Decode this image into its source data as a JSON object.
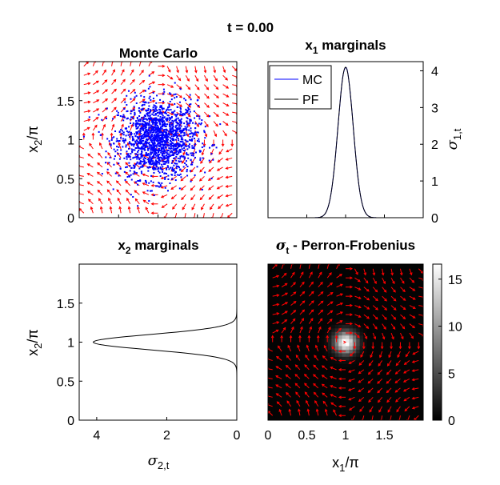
{
  "figure": {
    "title": "t = 0.00"
  },
  "chart_data": [
    {
      "id": "monte-carlo",
      "type": "scatter",
      "title": "Monte Carlo",
      "xlabel": "",
      "ylabel_main": "x",
      "ylabel_sub": "2",
      "ylabel_tail": "/π",
      "xlim": [
        0,
        2
      ],
      "ylim": [
        0,
        2
      ],
      "yticks": [
        0,
        0.5,
        1,
        1.5
      ],
      "yticklabels": [
        "0",
        "0.5",
        "1",
        "1.5"
      ],
      "particles": {
        "count": 1600,
        "mean": [
          1.0,
          1.0
        ],
        "std": [
          0.25,
          0.25
        ],
        "color": "#0000ff"
      },
      "vector_field": {
        "grid": 17,
        "color": "#ff0000",
        "center": [
          1.0,
          1.0
        ],
        "rotation": "counterclockwise"
      }
    },
    {
      "id": "x1-marginals",
      "type": "line",
      "title_main": "x",
      "title_sub": "1",
      "title_tail": " marginals",
      "ylabel_main": "σ",
      "ylabel_sub": "1,t",
      "xlim": [
        0,
        2
      ],
      "ylim": [
        0,
        4.25
      ],
      "yticks": [
        0,
        1,
        2,
        3,
        4
      ],
      "yticklabels": [
        "0",
        "1",
        "2",
        "3",
        "4"
      ],
      "series": [
        {
          "name": "MC",
          "color": "#0000ff",
          "mean": 1.0,
          "std": 0.098,
          "peak": 4.1
        },
        {
          "name": "PF",
          "color": "#000000",
          "mean": 1.0,
          "std": 0.098,
          "peak": 4.1
        }
      ],
      "legend_position": "top-left"
    },
    {
      "id": "x2-marginals",
      "type": "line",
      "title_main": "x",
      "title_sub": "2",
      "title_tail": " marginals",
      "xlabel_main": "σ",
      "xlabel_sub": "2,t",
      "ylabel_main": "x",
      "ylabel_sub": "2",
      "ylabel_tail": "/π",
      "xlim": [
        4.5,
        0
      ],
      "ylim": [
        0,
        2
      ],
      "xticks": [
        4,
        2,
        0
      ],
      "xticklabels": [
        "4",
        "2",
        "0"
      ],
      "yticks": [
        0,
        0.5,
        1,
        1.5
      ],
      "yticklabels": [
        "0",
        "0.5",
        "1",
        "1.5"
      ],
      "series": [
        {
          "name": "PF",
          "color": "#000000",
          "mean": 1.0,
          "std": 0.098,
          "peak": 4.1
        }
      ]
    },
    {
      "id": "perron-frobenius",
      "type": "heatmap",
      "title_main": "σ",
      "title_sub": "t",
      "title_tail": " - Perron-Frobenius",
      "xlabel_main": "x",
      "xlabel_sub": "1",
      "xlabel_tail": "/π",
      "xlim": [
        0,
        2
      ],
      "ylim": [
        0,
        2
      ],
      "xticks": [
        0,
        0.5,
        1,
        1.5
      ],
      "xticklabels": [
        "0",
        "0.5",
        "1",
        "1.5"
      ],
      "density": {
        "mean": [
          1.0,
          1.0
        ],
        "std": 0.098,
        "peak": 16.6,
        "grid": 44
      },
      "colorbar": {
        "range": [
          0,
          16.6
        ],
        "ticks": [
          0,
          5,
          10,
          15
        ],
        "ticklabels": [
          "0",
          "5",
          "10",
          "15"
        ],
        "colormap": "gray"
      },
      "vector_field": {
        "grid": 17,
        "color": "#ff0000",
        "center": [
          1.0,
          1.0
        ],
        "rotation": "counterclockwise"
      }
    }
  ]
}
